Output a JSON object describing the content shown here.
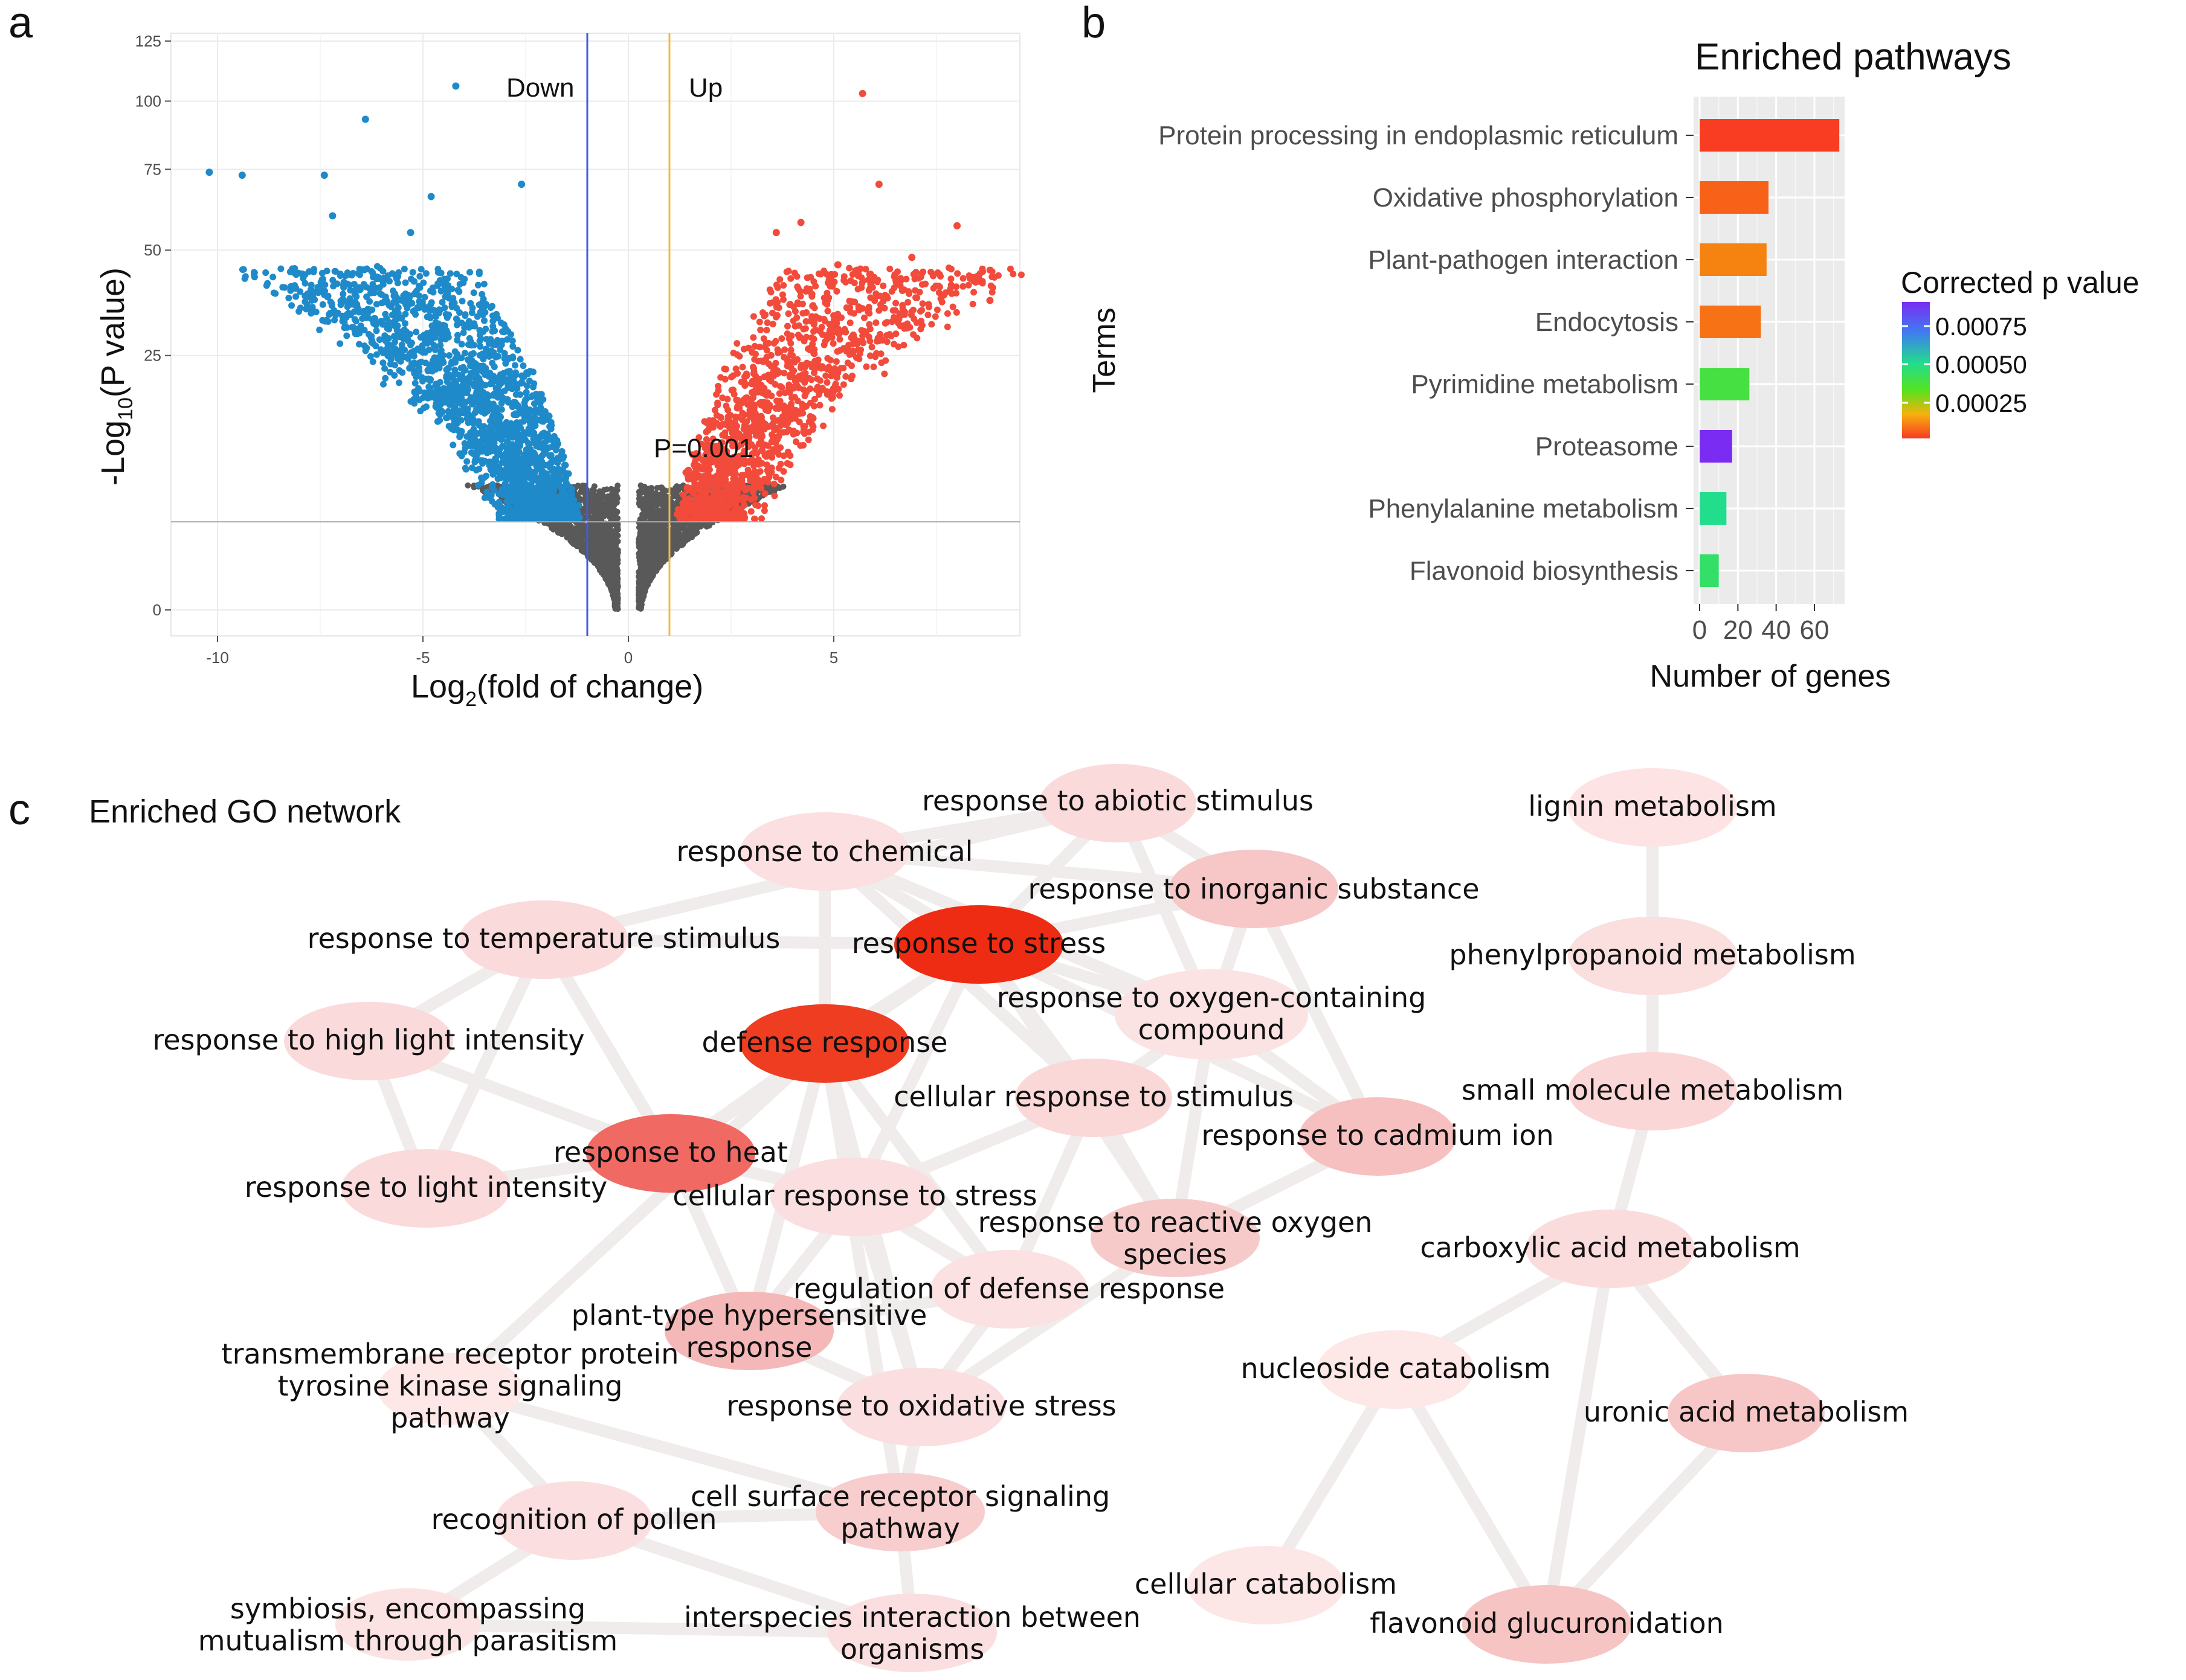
{
  "panels": {
    "a": "a",
    "b": "b",
    "c": "c"
  },
  "chart_data": [
    {
      "type": "scatter",
      "panel": "a",
      "xlabel": "Log2(fold of change)",
      "xlabel_base": "Log",
      "xlabel_sub": "2",
      "xlabel_rest": "(fold of change)",
      "ylabel": "-Log10(P value)",
      "ylabel_base": "-Log",
      "ylabel_sub": "10",
      "ylabel_rest": "(P value)",
      "xlim": [
        -11,
        10
      ],
      "x_ticks": [
        -10,
        -5,
        0,
        5
      ],
      "y_ticks": [
        0,
        25,
        50,
        75,
        100,
        125
      ],
      "y_scale": "sqrt",
      "ylim": [
        0,
        125
      ],
      "thresholds": {
        "fold_down": -1,
        "fold_up": 1,
        "p_value": 0.001,
        "p_line_y": 3,
        "p_label": "P=0.001"
      },
      "annotations": [
        "Down",
        "Up"
      ],
      "colors": {
        "down": "#1f8ac9",
        "up": "#f24a3b",
        "ns": "#595959",
        "down_line": "#3f5be0",
        "up_line": "#f2b84b"
      },
      "series": [
        {
          "name": "Down",
          "highlight_points": [
            [
              -10.2,
              74
            ],
            [
              -9.4,
              73
            ],
            [
              -7.4,
              73
            ],
            [
              -6.4,
              93
            ],
            [
              -4.2,
              106
            ],
            [
              -7.2,
              60
            ],
            [
              -4.8,
              66
            ],
            [
              -2.6,
              70
            ],
            [
              -8.1,
              40
            ],
            [
              -5.3,
              55
            ]
          ]
        },
        {
          "name": "Up",
          "highlight_points": [
            [
              5.7,
              103
            ],
            [
              6.1,
              70
            ],
            [
              8.0,
              57
            ],
            [
              8.5,
              43
            ],
            [
              8.8,
              37
            ],
            [
              4.2,
              58
            ],
            [
              3.6,
              55
            ],
            [
              6.9,
              48
            ],
            [
              5.1,
              46
            ]
          ]
        }
      ]
    },
    {
      "type": "bar",
      "orientation": "horizontal",
      "panel": "b",
      "title": "Enriched pathways",
      "xlabel": "Number of genes",
      "ylabel": "Terms",
      "categories": [
        "Protein processing in endoplasmic reticulum",
        "Oxidative phosphorylation",
        "Plant-pathogen interaction",
        "Endocytosis",
        "Pyrimidine metabolism",
        "Proteasome",
        "Phenylalanine metabolism",
        "Flavonoid biosynthesis"
      ],
      "values": [
        73,
        36,
        35,
        32,
        26,
        17,
        14,
        10
      ],
      "p_values": [
        1e-05,
        0.00012,
        0.00022,
        0.00017,
        0.00045,
        0.0009,
        0.00055,
        0.0005
      ],
      "xlim": [
        0,
        75
      ],
      "x_ticks": [
        0,
        20,
        40,
        60
      ],
      "legend": {
        "title": "Corrected p value",
        "ticks": [
          "0.00075",
          "0.00050",
          "0.00025"
        ]
      }
    },
    {
      "type": "network",
      "panel": "c",
      "title": "Enriched GO network",
      "nodes": [
        {
          "id": "abiotic",
          "lines": [
            "response to abiotic stimulus"
          ],
          "color": "#fadadb"
        },
        {
          "id": "chemical",
          "lines": [
            "response to chemical"
          ],
          "color": "#fcdfe0"
        },
        {
          "id": "inorganic",
          "lines": [
            "response to inorganic substance"
          ],
          "color": "#f7c6c6"
        },
        {
          "id": "temperature",
          "lines": [
            "response to temperature stimulus"
          ],
          "color": "#fadadb"
        },
        {
          "id": "stress",
          "lines": [
            "response to stress"
          ],
          "color": "#ee2c14"
        },
        {
          "id": "oxygen",
          "lines": [
            "response to oxygen-containing",
            "compound"
          ],
          "color": "#fce3e3"
        },
        {
          "id": "highlight",
          "lines": [
            "response to high light intensity"
          ],
          "color": "#fadadb"
        },
        {
          "id": "defense",
          "lines": [
            "defense response"
          ],
          "color": "#ef3d22"
        },
        {
          "id": "cellular",
          "lines": [
            "cellular response to stimulus"
          ],
          "color": "#fad8d8"
        },
        {
          "id": "cadmium",
          "lines": [
            "response to cadmium ion"
          ],
          "color": "#f7c0c0"
        },
        {
          "id": "heat",
          "lines": [
            "response to heat"
          ],
          "color": "#f06a63"
        },
        {
          "id": "lightint",
          "lines": [
            "response to light intensity"
          ],
          "color": "#fadadb"
        },
        {
          "id": "cellstress",
          "lines": [
            "cellular response to stress"
          ],
          "color": "#fbdfe0"
        },
        {
          "id": "ros",
          "lines": [
            "response to reactive oxygen",
            "species"
          ],
          "color": "#f7caca"
        },
        {
          "id": "regdef",
          "lines": [
            "regulation of defense response"
          ],
          "color": "#fbe1e1"
        },
        {
          "id": "hyper",
          "lines": [
            "plant-type hypersensitive",
            "response"
          ],
          "color": "#f5b8b8"
        },
        {
          "id": "tyrosine",
          "lines": [
            "transmembrane receptor protein",
            "tyrosine kinase signaling",
            "pathway"
          ],
          "color": "#fde7e7"
        },
        {
          "id": "oxstress",
          "lines": [
            "response to oxidative stress"
          ],
          "color": "#fbdfe0"
        },
        {
          "id": "pollen",
          "lines": [
            "recognition of pollen"
          ],
          "color": "#fbdfe0"
        },
        {
          "id": "cellsurf",
          "lines": [
            "cell surface receptor signaling",
            "pathway"
          ],
          "color": "#f8cdcd"
        },
        {
          "id": "symbiosis",
          "lines": [
            "symbiosis, encompassing",
            "mutualism through parasitism"
          ],
          "color": "#fce3e3"
        },
        {
          "id": "interspecies",
          "lines": [
            "interspecies interaction between",
            "organisms"
          ],
          "color": "#fbdfe0"
        },
        {
          "id": "lignin",
          "lines": [
            "lignin metabolism"
          ],
          "color": "#fde3e3"
        },
        {
          "id": "phenylprop",
          "lines": [
            "phenylpropanoid metabolism"
          ],
          "color": "#fbdfdf"
        },
        {
          "id": "smallmol",
          "lines": [
            "small molecule metabolism"
          ],
          "color": "#fad6d6"
        },
        {
          "id": "carboxylic",
          "lines": [
            "carboxylic acid metabolism"
          ],
          "color": "#fbdcdc"
        },
        {
          "id": "nucleoside",
          "lines": [
            "nucleoside catabolism"
          ],
          "color": "#fde7e7"
        },
        {
          "id": "uronic",
          "lines": [
            "uronic acid metabolism"
          ],
          "color": "#f7c6c6"
        },
        {
          "id": "cellcatab",
          "lines": [
            "cellular catabolism"
          ],
          "color": "#fde6e6"
        },
        {
          "id": "flavonoid",
          "lines": [
            "flavonoid glucuronidation"
          ],
          "color": "#f7c4c4"
        }
      ],
      "edges": [
        [
          "chemical",
          "abiotic"
        ],
        [
          "chemical",
          "inorganic"
        ],
        [
          "chemical",
          "stress"
        ],
        [
          "chemical",
          "defense"
        ],
        [
          "chemical",
          "oxygen"
        ],
        [
          "chemical",
          "cellular"
        ],
        [
          "abiotic",
          "stress"
        ],
        [
          "abiotic",
          "inorganic"
        ],
        [
          "abiotic",
          "temperature"
        ],
        [
          "abiotic",
          "oxygen"
        ],
        [
          "inorganic",
          "stress"
        ],
        [
          "inorganic",
          "cadmium"
        ],
        [
          "inorganic",
          "oxygen"
        ],
        [
          "stress",
          "defense"
        ],
        [
          "stress",
          "oxygen"
        ],
        [
          "stress",
          "cellular"
        ],
        [
          "stress",
          "heat"
        ],
        [
          "stress",
          "cadmium"
        ],
        [
          "stress",
          "ros"
        ],
        [
          "stress",
          "cellstress"
        ],
        [
          "stress",
          "temperature"
        ],
        [
          "temperature",
          "highlight"
        ],
        [
          "temperature",
          "lightint"
        ],
        [
          "temperature",
          "heat"
        ],
        [
          "highlight",
          "lightint"
        ],
        [
          "highlight",
          "heat"
        ],
        [
          "lightint",
          "heat"
        ],
        [
          "heat",
          "defense"
        ],
        [
          "heat",
          "cellstress"
        ],
        [
          "heat",
          "hyper"
        ],
        [
          "defense",
          "cellstress"
        ],
        [
          "defense",
          "regdef"
        ],
        [
          "defense",
          "hyper"
        ],
        [
          "defense",
          "oxstress"
        ],
        [
          "defense",
          "tyrosine"
        ],
        [
          "defense",
          "cellsurf"
        ],
        [
          "oxygen",
          "ros"
        ],
        [
          "oxygen",
          "cellular"
        ],
        [
          "oxygen",
          "cadmium"
        ],
        [
          "cellular",
          "cellstress"
        ],
        [
          "cellular",
          "ros"
        ],
        [
          "cellular",
          "regdef"
        ],
        [
          "cadmium",
          "ros"
        ],
        [
          "cellstress",
          "oxstress"
        ],
        [
          "cellstress",
          "hyper"
        ],
        [
          "cellstress",
          "regdef"
        ],
        [
          "ros",
          "oxstress"
        ],
        [
          "regdef",
          "hyper"
        ],
        [
          "regdef",
          "oxstress"
        ],
        [
          "hyper",
          "oxstress"
        ],
        [
          "tyrosine",
          "cellsurf"
        ],
        [
          "tyrosine",
          "pollen"
        ],
        [
          "pollen",
          "cellsurf"
        ],
        [
          "pollen",
          "symbiosis"
        ],
        [
          "pollen",
          "interspecies"
        ],
        [
          "symbiosis",
          "interspecies"
        ],
        [
          "interspecies",
          "cellsurf"
        ],
        [
          "cellsurf",
          "oxstress"
        ],
        [
          "lignin",
          "phenylprop"
        ],
        [
          "phenylprop",
          "smallmol"
        ],
        [
          "smallmol",
          "carboxylic"
        ],
        [
          "carboxylic",
          "nucleoside"
        ],
        [
          "carboxylic",
          "uronic"
        ],
        [
          "carboxylic",
          "flavonoid"
        ],
        [
          "nucleoside",
          "cellcatab"
        ],
        [
          "nucleoside",
          "flavonoid"
        ],
        [
          "uronic",
          "flavonoid"
        ]
      ]
    }
  ]
}
